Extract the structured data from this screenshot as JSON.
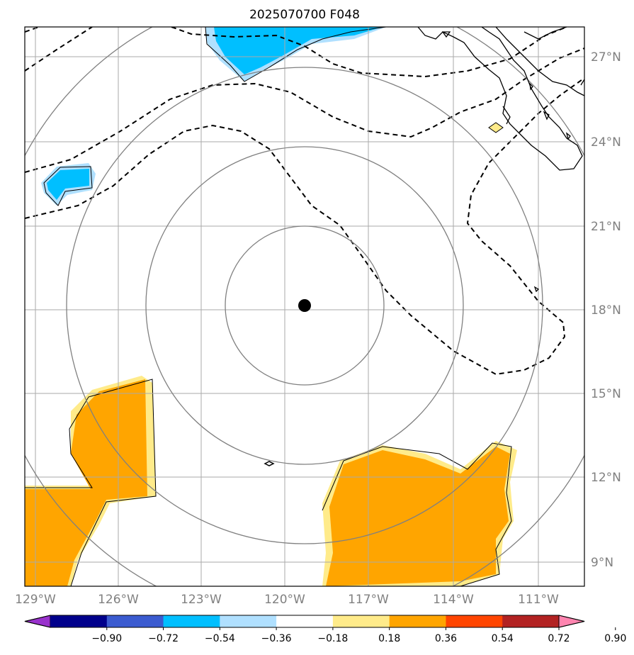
{
  "title": "2025070700 F048",
  "map": {
    "lon_ticks": [
      "129°W",
      "126°W",
      "123°W",
      "120°W",
      "117°W",
      "114°W",
      "111°W"
    ],
    "lat_ticks": [
      "27°N",
      "24°N",
      "21°N",
      "18°N",
      "15°N",
      "12°N",
      "9°N"
    ],
    "center_marker": "storm-center",
    "range_rings": 4,
    "line_color": "#808080"
  },
  "colorbar": {
    "labels": [
      "−0.90",
      "−0.72",
      "−0.54",
      "−0.36",
      "−0.18",
      "0.18",
      "0.36",
      "0.54",
      "0.72",
      "0.90"
    ],
    "colors": [
      "#9932cc",
      "#00008b",
      "#3b5bd0",
      "#00bfff",
      "#b0e0ff",
      "#ffffff",
      "#ffeb8a",
      "#ffa500",
      "#ff4500",
      "#b22222",
      "#ff85b0"
    ]
  }
}
